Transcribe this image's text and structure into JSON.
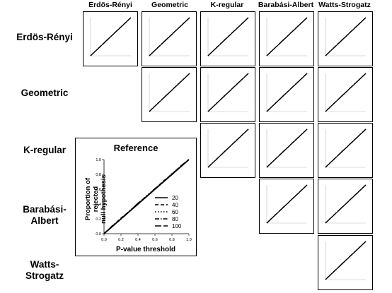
{
  "column_labels": [
    "Erdös-Rényi",
    "Geometric",
    "K-regular",
    "Barabási-Albert",
    "Watts-Strogatz"
  ],
  "row_labels": {
    "erdos_renyi": "Erdös-Rényi",
    "geometric": "Geometric",
    "k_regular": "K-regular",
    "barabasi_albert": "Barabási-\nAlbert",
    "watts_strogatz": "Watts-\nStrogatz"
  },
  "reference": {
    "title": "Reference",
    "ylabel": "Proportion of rejected\nnull hypothesis",
    "xlabel": "P-value threshold"
  },
  "chart_data": {
    "type": "line",
    "description_of_grid": "upper-triangular matrix of small panels, each plotting proportion of rejected null hypotheses against p-value threshold for 5 sizes; all curves follow the diagonal",
    "x": [
      0,
      0.1,
      0.2,
      0.3,
      0.4,
      0.5,
      0.6,
      0.7,
      0.8,
      0.9,
      1.0
    ],
    "xlim": [
      0,
      1
    ],
    "ylim": [
      0,
      1
    ],
    "xticks": [
      "0.0",
      "0.2",
      "0.4",
      "0.6",
      "0.8",
      "1.0"
    ],
    "yticks": [
      "0.0",
      "0.2",
      "0.4",
      "0.6",
      "0.8",
      "1.0"
    ],
    "series": [
      {
        "name": "20",
        "style": "solid",
        "values": [
          0,
          0.1,
          0.2,
          0.3,
          0.4,
          0.5,
          0.6,
          0.7,
          0.8,
          0.9,
          1.0
        ]
      },
      {
        "name": "40",
        "style": "dashed",
        "values": [
          0,
          0.1,
          0.21,
          0.3,
          0.41,
          0.5,
          0.6,
          0.71,
          0.8,
          0.9,
          1.0
        ]
      },
      {
        "name": "60",
        "style": "dotted",
        "values": [
          0,
          0.1,
          0.2,
          0.31,
          0.4,
          0.51,
          0.6,
          0.7,
          0.81,
          0.9,
          1.0
        ]
      },
      {
        "name": "80",
        "style": "dashdot",
        "values": [
          0,
          0.11,
          0.2,
          0.3,
          0.4,
          0.5,
          0.61,
          0.7,
          0.8,
          0.9,
          1.0
        ]
      },
      {
        "name": "100",
        "style": "longdash",
        "values": [
          0,
          0.1,
          0.2,
          0.3,
          0.41,
          0.5,
          0.6,
          0.7,
          0.8,
          0.91,
          1.0
        ]
      }
    ],
    "legend_position": "bottom-right",
    "grid": false
  }
}
